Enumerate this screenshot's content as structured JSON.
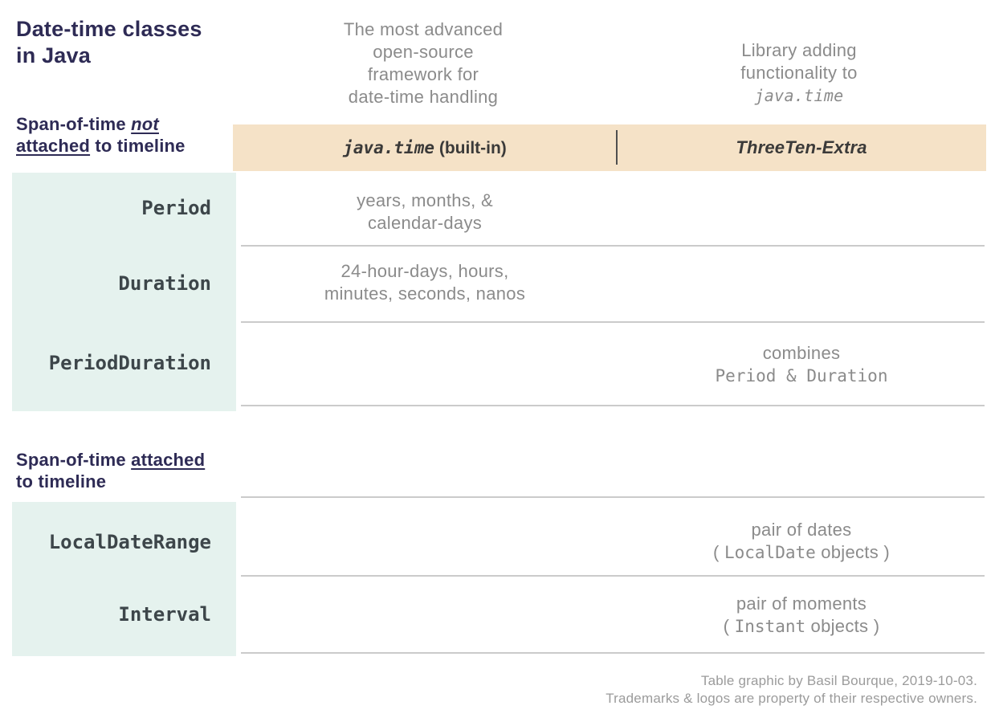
{
  "title": "Date-time classes\nin Java",
  "notes": {
    "framework": "The most advanced\nopen-source\nframework for\ndate-time handling",
    "library_prefix": "Library adding\nfunctionality to",
    "library_code": "java.time"
  },
  "column_headers": {
    "javatime_code": "java.time",
    "javatime_suffix": " (built-in)",
    "threeten": "ThreeTen-Extra"
  },
  "section_not_attached": {
    "label_prefix": "Span-of-time ",
    "label_em1": "not",
    "label_em2": "attached",
    "label_suffix": " to timeline",
    "rows": [
      {
        "class_name": "Period",
        "javatime_desc": "years, months, &\ncalendar-days",
        "threeten_desc": ""
      },
      {
        "class_name": "Duration",
        "javatime_desc": "24-hour-days, hours,\nminutes, seconds, nanos",
        "threeten_desc": ""
      },
      {
        "class_name": "PeriodDuration",
        "javatime_desc": "",
        "threeten_note": "combines",
        "threeten_code": "Period & Duration"
      }
    ]
  },
  "section_attached": {
    "label_prefix": "Span-of-time ",
    "label_em": "attached",
    "label_suffix": "to timeline",
    "rows": [
      {
        "class_name": "LocalDateRange",
        "desc": "pair of dates",
        "paren_open": "( ",
        "code": "LocalDate",
        "paren_close": " objects )"
      },
      {
        "class_name": "Interval",
        "desc": "pair of moments",
        "paren_open": "( ",
        "code": "Instant",
        "paren_close": " objects )"
      }
    ]
  },
  "footer": {
    "line1": "Table graphic by Basil Bourque, 2019-10-03.",
    "line2": "Trademarks & logos are property of their respective owners."
  },
  "colors": {
    "header_band": "#f5e2c7",
    "class_panel": "#e5f2ee",
    "heading_navy": "#2e2b55",
    "body_gray": "#8b8b8b",
    "code_dark": "#3d464a",
    "divider": "#cbcbcb"
  }
}
